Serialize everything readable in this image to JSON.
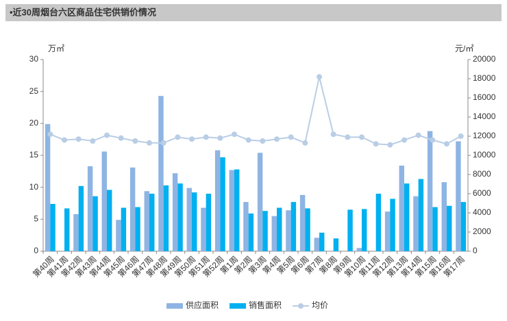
{
  "chart_data": {
    "type": "bar",
    "title": "•近30周烟台六区商品住宅供销价情况",
    "y_label": "万㎡",
    "y2_label": "元/㎡",
    "categories": [
      "第40周",
      "第41周",
      "第42周",
      "第43周",
      "第44周",
      "第45周",
      "第46周",
      "第47周",
      "第48周",
      "第49周",
      "第50周",
      "第51周",
      "第52周",
      "第1周",
      "第2周",
      "第3周",
      "第4周",
      "第5周",
      "第6周",
      "第7周",
      "第8周",
      "第9周",
      "第10周",
      "第11周",
      "第12周",
      "第13周",
      "第14周",
      "第15周",
      "第16周",
      "第17周"
    ],
    "series": [
      {
        "name": "供应面积",
        "type": "bar",
        "color": "#8eb4e3",
        "values": [
          19.9,
          0,
          5.8,
          13.3,
          15.6,
          4.9,
          13.1,
          9.4,
          24.3,
          12.2,
          9.9,
          6.8,
          15.8,
          12.7,
          7.7,
          15.4,
          5.5,
          6.4,
          8.8,
          2.1,
          0,
          0,
          0.5,
          0,
          6.2,
          13.4,
          8.6,
          18.8,
          10.8,
          17.2
        ]
      },
      {
        "name": "销售面积",
        "type": "bar",
        "color": "#00b0f0",
        "values": [
          7.4,
          6.7,
          10.2,
          8.6,
          9.6,
          6.8,
          6.9,
          9.0,
          10.3,
          10.6,
          9.2,
          9.0,
          14.7,
          12.8,
          5.9,
          6.3,
          6.8,
          7.7,
          6.7,
          2.9,
          2.0,
          6.5,
          6.6,
          9.0,
          8.2,
          10.6,
          11.3,
          6.9,
          7.1,
          7.7
        ]
      },
      {
        "name": "均价",
        "type": "line",
        "axis": "y2",
        "color": "#b9cde5",
        "values": [
          12200,
          11600,
          11700,
          11500,
          12100,
          11800,
          11500,
          11300,
          11300,
          11900,
          11700,
          11900,
          11800,
          12200,
          11600,
          11500,
          11700,
          11900,
          11300,
          18200,
          12200,
          11900,
          11900,
          11200,
          11100,
          11600,
          12100,
          11600,
          11200,
          12000
        ]
      }
    ],
    "ylim": [
      0,
      30
    ],
    "yticks": [
      0,
      5,
      10,
      15,
      20,
      25,
      30
    ],
    "y2lim": [
      0,
      20000
    ],
    "y2ticks": [
      0,
      2000,
      4000,
      6000,
      8000,
      10000,
      12000,
      14000,
      16000,
      18000,
      20000
    ],
    "legend": "bottom"
  }
}
